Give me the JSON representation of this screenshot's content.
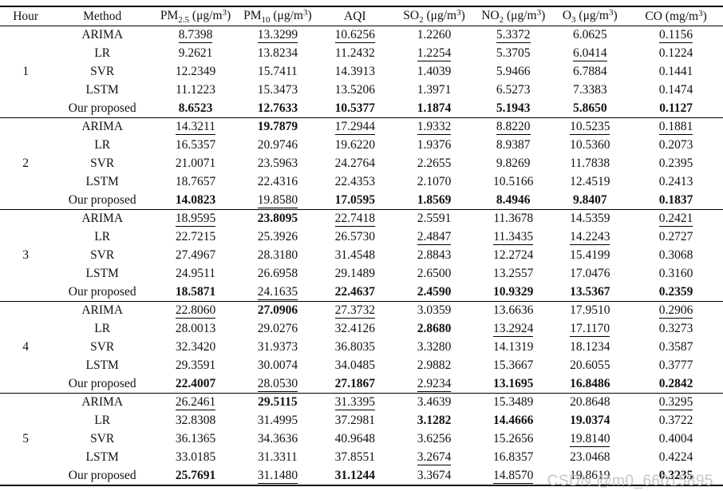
{
  "watermark": {
    "text": "CSDN @m0_66015895",
    "color": "#c8c5c5"
  },
  "table": {
    "columns": [
      {
        "id": "hour",
        "label": "Hour",
        "width": "7.1%"
      },
      {
        "id": "method",
        "label": "Method",
        "width": "14.1%"
      },
      {
        "id": "pm25",
        "label": "PM~2.5~ (μg/m^3^)",
        "width": "11.7%"
      },
      {
        "id": "pm10",
        "label": "PM~10~ (μg/m^3^)",
        "width": "11.0%"
      },
      {
        "id": "aqi",
        "label": "AQI",
        "width": "10.4%"
      },
      {
        "id": "so2",
        "label": "SO~2~ (μg/m^3^)",
        "width": "11.5%"
      },
      {
        "id": "no2",
        "label": "NO~2~ (μg/m^3^)",
        "width": "10.4%"
      },
      {
        "id": "o3",
        "label": "O~3~ (μg/m^3^)",
        "width": "10.8%"
      },
      {
        "id": "co",
        "label": "CO (mg/m^3^)",
        "width": "13.0%"
      }
    ],
    "groups": [
      {
        "hour": "1",
        "rows": [
          {
            "method": "ARIMA",
            "values": [
              "8.7398",
              "13.3299",
              "10.6256",
              "1.2260",
              "5.3372",
              "6.0625",
              "0.1156"
            ],
            "styles": [
              "u",
              "u",
              "u",
              "",
              "u",
              "",
              "u"
            ]
          },
          {
            "method": "LR",
            "values": [
              "9.2621",
              "13.8234",
              "11.2432",
              "1.2254",
              "5.3705",
              "6.0414",
              "0.1224"
            ],
            "styles": [
              "",
              "",
              "",
              "u",
              "",
              "u",
              ""
            ]
          },
          {
            "method": "SVR",
            "values": [
              "12.2349",
              "15.7411",
              "14.3913",
              "1.4039",
              "5.9466",
              "6.7884",
              "0.1441"
            ],
            "styles": [
              "",
              "",
              "",
              "",
              "",
              "",
              ""
            ]
          },
          {
            "method": "LSTM",
            "values": [
              "11.1223",
              "15.3473",
              "13.5206",
              "1.3971",
              "6.5273",
              "7.3383",
              "0.1474"
            ],
            "styles": [
              "",
              "",
              "",
              "",
              "",
              "",
              ""
            ]
          },
          {
            "method": "Our proposed",
            "values": [
              "8.6523",
              "12.7633",
              "10.5377",
              "1.1874",
              "5.1943",
              "5.8650",
              "0.1127"
            ],
            "styles": [
              "b",
              "b",
              "b",
              "b",
              "b",
              "b",
              "b"
            ]
          }
        ]
      },
      {
        "hour": "2",
        "rows": [
          {
            "method": "ARIMA",
            "values": [
              "14.3211",
              "19.7879",
              "17.2944",
              "1.9332",
              "8.8220",
              "10.5235",
              "0.1881"
            ],
            "styles": [
              "u",
              "b",
              "u",
              "u",
              "u",
              "u",
              "u"
            ]
          },
          {
            "method": "LR",
            "values": [
              "16.5357",
              "20.9746",
              "19.6220",
              "1.9376",
              "8.9387",
              "10.5360",
              "0.2073"
            ],
            "styles": [
              "",
              "",
              "",
              "",
              "",
              "",
              ""
            ]
          },
          {
            "method": "SVR",
            "values": [
              "21.0071",
              "23.5963",
              "24.2764",
              "2.2655",
              "9.8269",
              "11.7838",
              "0.2395"
            ],
            "styles": [
              "",
              "",
              "",
              "",
              "",
              "",
              ""
            ]
          },
          {
            "method": "LSTM",
            "values": [
              "18.7657",
              "22.4316",
              "22.4353",
              "2.1070",
              "10.5166",
              "12.4519",
              "0.2413"
            ],
            "styles": [
              "",
              "",
              "",
              "",
              "",
              "",
              ""
            ]
          },
          {
            "method": "Our proposed",
            "values": [
              "14.0823",
              "19.8580",
              "17.0595",
              "1.8569",
              "8.4946",
              "9.8407",
              "0.1837"
            ],
            "styles": [
              "b",
              "u",
              "b",
              "b",
              "b",
              "b",
              "b"
            ]
          }
        ]
      },
      {
        "hour": "3",
        "rows": [
          {
            "method": "ARIMA",
            "values": [
              "18.9595",
              "23.8095",
              "22.7418",
              "2.5591",
              "11.3678",
              "14.5359",
              "0.2421"
            ],
            "styles": [
              "u",
              "b",
              "u",
              "",
              "",
              "",
              "u"
            ]
          },
          {
            "method": "LR",
            "values": [
              "22.7215",
              "25.3926",
              "26.5730",
              "2.4847",
              "11.3435",
              "14.2243",
              "0.2727"
            ],
            "styles": [
              "",
              "",
              "",
              "u",
              "u",
              "u",
              ""
            ]
          },
          {
            "method": "SVR",
            "values": [
              "27.4967",
              "28.3180",
              "31.4548",
              "2.8843",
              "12.2724",
              "15.4199",
              "0.3068"
            ],
            "styles": [
              "",
              "",
              "",
              "",
              "",
              "",
              ""
            ]
          },
          {
            "method": "LSTM",
            "values": [
              "24.9511",
              "26.6958",
              "29.1489",
              "2.6500",
              "13.2557",
              "17.0476",
              "0.3160"
            ],
            "styles": [
              "",
              "",
              "",
              "",
              "",
              "",
              ""
            ]
          },
          {
            "method": "Our proposed",
            "values": [
              "18.5871",
              "24.1635",
              "22.4637",
              "2.4590",
              "10.9329",
              "13.5367",
              "0.2359"
            ],
            "styles": [
              "b",
              "u",
              "b",
              "b",
              "b",
              "b",
              "b"
            ]
          }
        ]
      },
      {
        "hour": "4",
        "rows": [
          {
            "method": "ARIMA",
            "values": [
              "22.8060",
              "27.0906",
              "27.3732",
              "3.0359",
              "13.6636",
              "17.9510",
              "0.2906"
            ],
            "styles": [
              "u",
              "b",
              "u",
              "",
              "",
              "",
              "u"
            ]
          },
          {
            "method": "LR",
            "values": [
              "28.0013",
              "29.0276",
              "32.4126",
              "2.8680",
              "13.2924",
              "17.1170",
              "0.3273"
            ],
            "styles": [
              "",
              "",
              "",
              "b",
              "u",
              "u",
              ""
            ]
          },
          {
            "method": "SVR",
            "values": [
              "32.3420",
              "31.9373",
              "36.8035",
              "3.3280",
              "14.1319",
              "18.1234",
              "0.3587"
            ],
            "styles": [
              "",
              "",
              "",
              "",
              "",
              "",
              ""
            ]
          },
          {
            "method": "LSTM",
            "values": [
              "29.3591",
              "30.0074",
              "34.0485",
              "2.9882",
              "15.3667",
              "20.6055",
              "0.3777"
            ],
            "styles": [
              "",
              "",
              "",
              "",
              "",
              "",
              ""
            ]
          },
          {
            "method": "Our proposed",
            "values": [
              "22.4007",
              "28.0530",
              "27.1867",
              "2.9234",
              "13.1695",
              "16.8486",
              "0.2842"
            ],
            "styles": [
              "b",
              "u",
              "b",
              "u",
              "b",
              "b",
              "b"
            ]
          }
        ]
      },
      {
        "hour": "5",
        "rows": [
          {
            "method": "ARIMA",
            "values": [
              "26.2461",
              "29.5115",
              "31.3395",
              "3.4639",
              "15.3489",
              "20.8648",
              "0.3295"
            ],
            "styles": [
              "u",
              "b",
              "u",
              "",
              "",
              "",
              "u"
            ]
          },
          {
            "method": "LR",
            "values": [
              "32.8308",
              "31.4995",
              "37.2981",
              "3.1282",
              "14.4666",
              "19.0374",
              "0.3722"
            ],
            "styles": [
              "",
              "",
              "",
              "b",
              "b",
              "b",
              ""
            ]
          },
          {
            "method": "SVR",
            "values": [
              "36.1365",
              "34.3636",
              "40.9648",
              "3.6256",
              "15.2656",
              "19.8140",
              "0.4004"
            ],
            "styles": [
              "",
              "",
              "",
              "",
              "",
              "u",
              ""
            ]
          },
          {
            "method": "LSTM",
            "values": [
              "33.0185",
              "31.3311",
              "37.8551",
              "3.2674",
              "16.8357",
              "23.0468",
              "0.4224"
            ],
            "styles": [
              "",
              "",
              "",
              "u",
              "",
              "",
              ""
            ]
          },
          {
            "method": "Our proposed",
            "values": [
              "25.7691",
              "31.1480",
              "31.1244",
              "3.3674",
              "14.8570",
              "19.8619",
              "0.3235"
            ],
            "styles": [
              "b",
              "u",
              "b",
              "",
              "u",
              "",
              "b"
            ]
          }
        ]
      }
    ]
  }
}
